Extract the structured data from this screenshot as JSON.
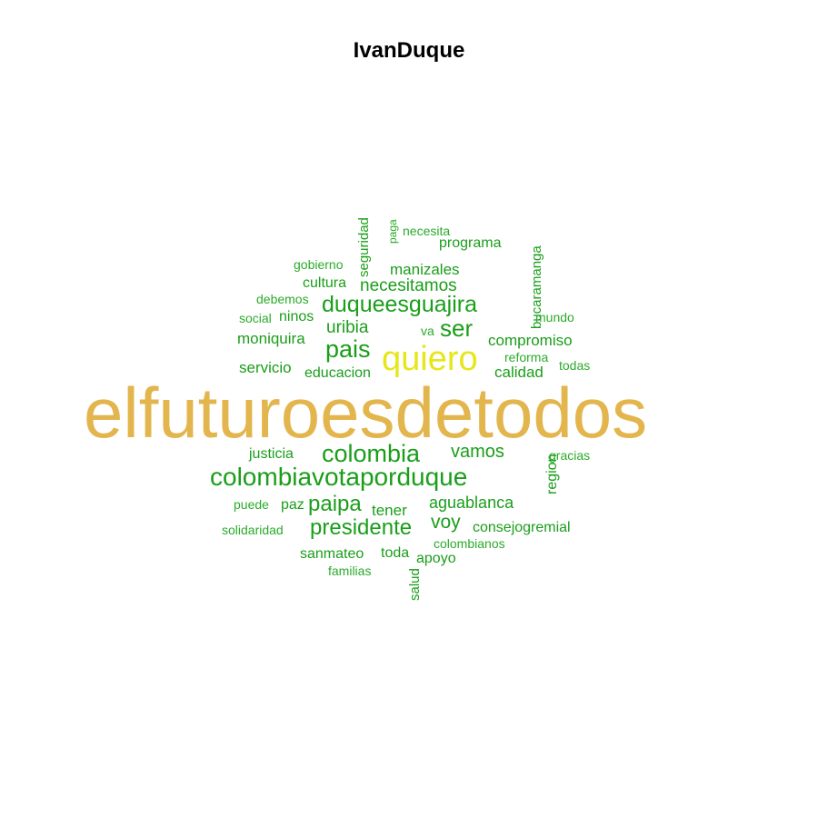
{
  "title": "IvanDuque",
  "colors": {
    "top": "#e3b54d",
    "second": "#e6e619",
    "primary": "#1a9e1a",
    "secondary": "#2bab2b"
  },
  "words": [
    {
      "text": "elfuturoesdetodos",
      "color": "top"
    },
    {
      "text": "quiero",
      "color": "second"
    },
    {
      "text": "colombiavotaporduque",
      "color": "primary"
    },
    {
      "text": "duqueesguajira",
      "color": "primary"
    },
    {
      "text": "colombia",
      "color": "primary"
    },
    {
      "text": "pais",
      "color": "primary"
    },
    {
      "text": "ser",
      "color": "primary"
    },
    {
      "text": "presidente",
      "color": "primary"
    },
    {
      "text": "paipa",
      "color": "primary"
    },
    {
      "text": "vamos",
      "color": "primary"
    },
    {
      "text": "necesitamos",
      "color": "primary"
    },
    {
      "text": "uribia",
      "color": "primary"
    },
    {
      "text": "voy",
      "color": "primary"
    },
    {
      "text": "aguablanca",
      "color": "primary"
    },
    {
      "text": "manizales",
      "color": "primary"
    },
    {
      "text": "compromiso",
      "color": "primary"
    },
    {
      "text": "moniquira",
      "color": "primary"
    },
    {
      "text": "servicio",
      "color": "primary"
    },
    {
      "text": "calidad",
      "color": "primary"
    },
    {
      "text": "cultura",
      "color": "primary"
    },
    {
      "text": "programa",
      "color": "primary"
    },
    {
      "text": "justicia",
      "color": "primary"
    },
    {
      "text": "consejogremial",
      "color": "primary"
    },
    {
      "text": "tener",
      "color": "primary"
    },
    {
      "text": "educacion",
      "color": "primary"
    },
    {
      "text": "sanmateo",
      "color": "primary"
    },
    {
      "text": "toda",
      "color": "primary"
    },
    {
      "text": "apoyo",
      "color": "primary"
    },
    {
      "text": "ninos",
      "color": "primary"
    },
    {
      "text": "paz",
      "color": "primary"
    },
    {
      "text": "seguridad",
      "color": "primary"
    },
    {
      "text": "bucaramanga",
      "color": "primary"
    },
    {
      "text": "region",
      "color": "primary"
    },
    {
      "text": "salud",
      "color": "primary"
    },
    {
      "text": "reforma",
      "color": "secondary"
    },
    {
      "text": "colombianos",
      "color": "secondary"
    },
    {
      "text": "gobierno",
      "color": "secondary"
    },
    {
      "text": "debemos",
      "color": "secondary"
    },
    {
      "text": "social",
      "color": "secondary"
    },
    {
      "text": "mundo",
      "color": "secondary"
    },
    {
      "text": "todas",
      "color": "secondary"
    },
    {
      "text": "gracias",
      "color": "secondary"
    },
    {
      "text": "puede",
      "color": "secondary"
    },
    {
      "text": "solidaridad",
      "color": "secondary"
    },
    {
      "text": "familias",
      "color": "secondary"
    },
    {
      "text": "necesita",
      "color": "secondary"
    },
    {
      "text": "va",
      "color": "secondary"
    },
    {
      "text": "paga",
      "color": "secondary"
    }
  ]
}
